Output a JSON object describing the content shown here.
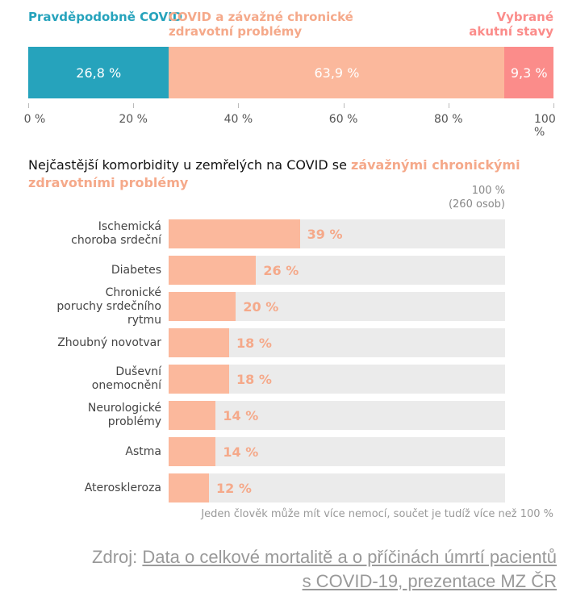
{
  "chart_data": [
    {
      "type": "bar",
      "orientation": "horizontal",
      "stacked": true,
      "colors": [
        "#26a3bc",
        "#fbb89c",
        "#fb8c8a"
      ],
      "series": [
        {
          "name": "Pravděpodobně COVID",
          "value": 26.8,
          "label": "26,8 %"
        },
        {
          "name": "COVID a závažné chronické zdravotní problémy",
          "value": 63.9,
          "label": "63,9 %"
        },
        {
          "name": "Vybrané akutní stavy",
          "value": 9.3,
          "label": "9,3 %"
        }
      ],
      "xlim": [
        0,
        100
      ],
      "ticks": [
        "0 %",
        "20 %",
        "40 %",
        "60 %",
        "80 %",
        "100 %"
      ]
    },
    {
      "type": "bar",
      "orientation": "horizontal",
      "title_prefix": "Nejčastější komorbidity u zemřelých na COVID se ",
      "title_highlight": "závažnými chronickými zdravotními problémy",
      "max_label": "100 %",
      "max_sublabel": "(260 osob)",
      "xlim": [
        0,
        100
      ],
      "bar_color": "#fbb89c",
      "background_color": "#ebebeb",
      "categories": [
        "Ischemická choroba srdeční",
        "Diabetes",
        "Chronické poruchy srdečního rytmu",
        "Zhoubný novotvar",
        "Duševní onemocnění",
        "Neurologické problémy",
        "Astma",
        "Ateroskleroza"
      ],
      "values": [
        39,
        26,
        20,
        18,
        18,
        14,
        14,
        12
      ],
      "labels": [
        "39 %",
        "26 %",
        "20 %",
        "18 %",
        "18  %",
        "14 %",
        "14 %",
        "12 %"
      ],
      "note": "Jeden člověk může mít více nemocí, součet je tudíž více než 100 %"
    }
  ],
  "source": {
    "prefix": "Zdroj: ",
    "link1": "Data o celkové mortalitě a o příčinách úmrtí pacientů",
    "link2": "s COVID-19, prezentace MZ ČR"
  }
}
